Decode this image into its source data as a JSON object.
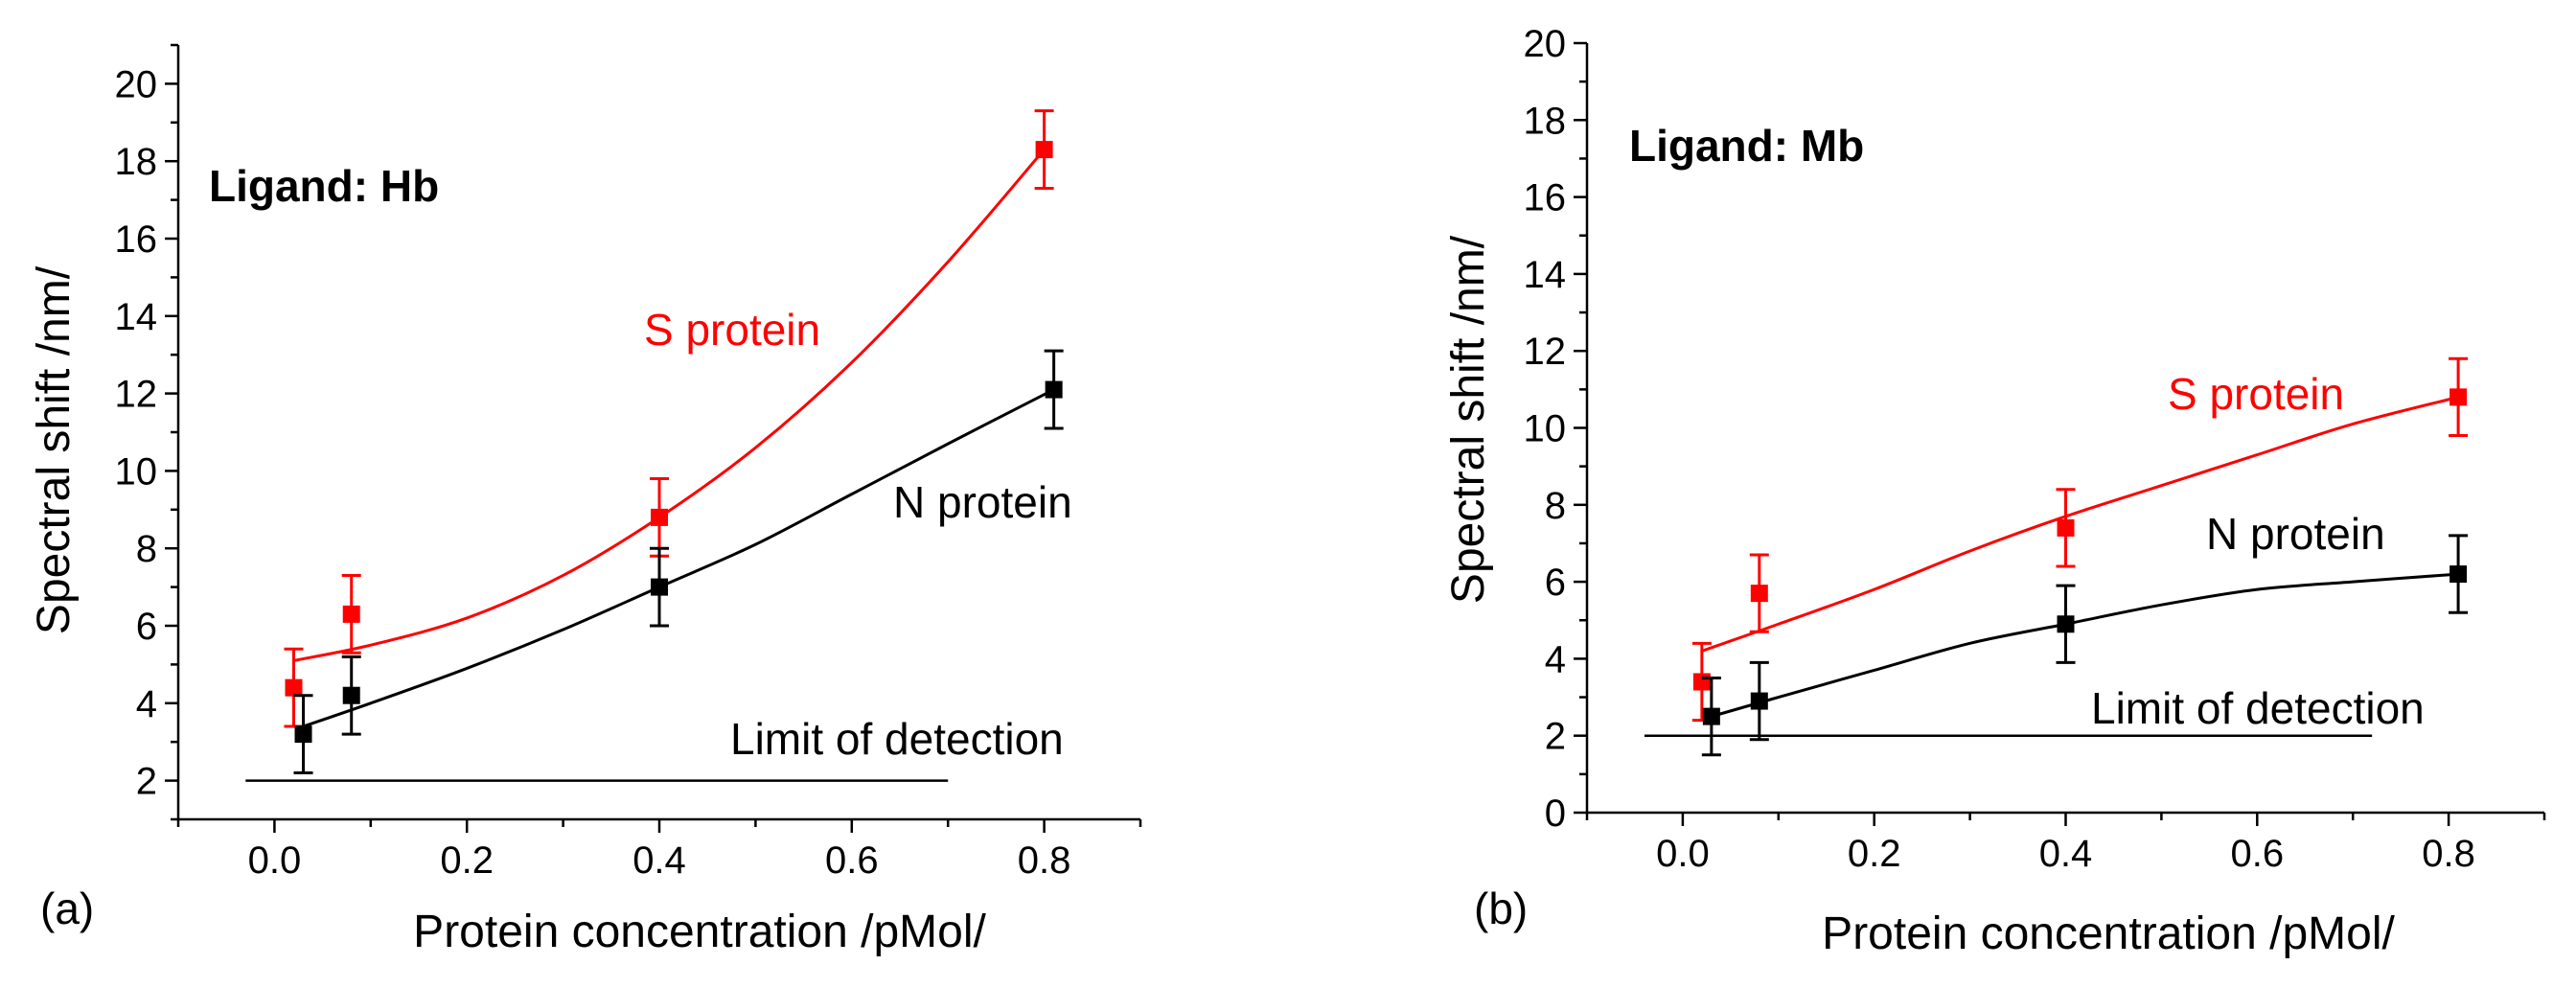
{
  "chart_data": [
    {
      "type": "scatter",
      "panel_tag": "(a)",
      "annotation": "Ligand: Hb",
      "xlabel": "Protein concentration /pMol/",
      "ylabel": "Spectral shift /nm/",
      "xlim": [
        -0.1,
        0.9
      ],
      "ylim": [
        1,
        21
      ],
      "x_ticks": [
        0.0,
        0.2,
        0.4,
        0.6,
        0.8
      ],
      "x_tick_labels": [
        "0.0",
        "0.2",
        "0.4",
        "0.6",
        "0.8"
      ],
      "y_ticks": [
        2,
        4,
        6,
        8,
        10,
        12,
        14,
        16,
        18,
        20
      ],
      "y_tick_labels": [
        "2",
        "4",
        "6",
        "8",
        "10",
        "12",
        "14",
        "16",
        "18",
        "20"
      ],
      "series": [
        {
          "name": "S protein",
          "color": "#ff0000",
          "x": [
            0.02,
            0.08,
            0.4,
            0.8
          ],
          "values": [
            4.4,
            6.3,
            8.8,
            18.3
          ],
          "errors": [
            1.0,
            1.0,
            1.0,
            1.0
          ],
          "fit": [
            [
              0.02,
              5.1
            ],
            [
              0.1,
              5.5
            ],
            [
              0.2,
              6.2
            ],
            [
              0.3,
              7.3
            ],
            [
              0.4,
              8.8
            ],
            [
              0.5,
              10.6
            ],
            [
              0.6,
              12.8
            ],
            [
              0.7,
              15.4
            ],
            [
              0.8,
              18.3
            ]
          ]
        },
        {
          "name": "N protein",
          "color": "#000000",
          "x": [
            0.03,
            0.08,
            0.4,
            0.81
          ],
          "values": [
            3.2,
            4.2,
            7.0,
            12.1
          ],
          "errors": [
            1.0,
            1.0,
            1.0,
            1.0
          ],
          "fit": [
            [
              0.03,
              3.4
            ],
            [
              0.1,
              4.0
            ],
            [
              0.2,
              4.9
            ],
            [
              0.3,
              5.9
            ],
            [
              0.4,
              7.0
            ],
            [
              0.5,
              8.1
            ],
            [
              0.6,
              9.4
            ],
            [
              0.7,
              10.7
            ],
            [
              0.81,
              12.1
            ]
          ]
        }
      ],
      "limit_line": {
        "label": "Limit of detection",
        "value": 2.0,
        "x_range": [
          -0.03,
          0.7
        ]
      }
    },
    {
      "type": "scatter",
      "panel_tag": "(b)",
      "annotation": "Ligand: Mb",
      "xlabel": "Protein concentration /pMol/",
      "ylabel": "Spectral shift /nm/",
      "xlim": [
        -0.1,
        0.9
      ],
      "ylim": [
        0,
        20
      ],
      "x_ticks": [
        0.0,
        0.2,
        0.4,
        0.6,
        0.8
      ],
      "x_tick_labels": [
        "0.0",
        "0.2",
        "0.4",
        "0.6",
        "0.8"
      ],
      "y_ticks": [
        0,
        2,
        4,
        6,
        8,
        10,
        12,
        14,
        16,
        18,
        20
      ],
      "y_tick_labels": [
        "0",
        "2",
        "4",
        "6",
        "8",
        "10",
        "12",
        "14",
        "16",
        "18",
        "20"
      ],
      "series": [
        {
          "name": "S protein",
          "color": "#ff0000",
          "x": [
            0.02,
            0.08,
            0.4,
            0.81
          ],
          "values": [
            3.4,
            5.7,
            7.4,
            10.8
          ],
          "errors": [
            1.0,
            1.0,
            1.0,
            1.0
          ],
          "fit": [
            [
              0.02,
              4.2
            ],
            [
              0.1,
              4.9
            ],
            [
              0.2,
              5.8
            ],
            [
              0.3,
              6.8
            ],
            [
              0.4,
              7.7
            ],
            [
              0.5,
              8.5
            ],
            [
              0.6,
              9.3
            ],
            [
              0.7,
              10.1
            ],
            [
              0.81,
              10.8
            ]
          ]
        },
        {
          "name": "N protein",
          "color": "#000000",
          "x": [
            0.03,
            0.08,
            0.4,
            0.81
          ],
          "values": [
            2.5,
            2.9,
            4.9,
            6.2
          ],
          "errors": [
            1.0,
            1.0,
            1.0,
            1.0
          ],
          "fit": [
            [
              0.03,
              2.5
            ],
            [
              0.1,
              3.0
            ],
            [
              0.2,
              3.7
            ],
            [
              0.3,
              4.4
            ],
            [
              0.4,
              4.9
            ],
            [
              0.5,
              5.4
            ],
            [
              0.6,
              5.8
            ],
            [
              0.7,
              6.0
            ],
            [
              0.81,
              6.2
            ]
          ]
        }
      ],
      "limit_line": {
        "label": "Limit of detection",
        "value": 2.0,
        "x_range": [
          -0.04,
          0.72
        ]
      }
    }
  ]
}
